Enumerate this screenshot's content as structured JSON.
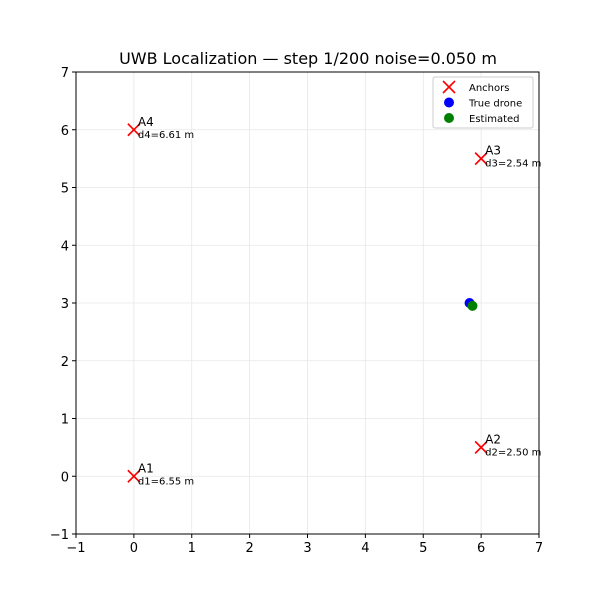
{
  "chart_data": {
    "type": "scatter",
    "title": "UWB Localization — step 1/200  noise=0.050 m",
    "xlabel": "",
    "ylabel": "",
    "xlim": [
      -1,
      7
    ],
    "ylim": [
      -1,
      7
    ],
    "xticks": [
      -1,
      0,
      1,
      2,
      3,
      4,
      5,
      6,
      7
    ],
    "yticks": [
      -1,
      0,
      1,
      2,
      3,
      4,
      5,
      6,
      7
    ],
    "xtick_labels": [
      "−1",
      "0",
      "1",
      "2",
      "3",
      "4",
      "5",
      "6",
      "7"
    ],
    "ytick_labels": [
      "−1",
      "0",
      "1",
      "2",
      "3",
      "4",
      "5",
      "6",
      "7"
    ],
    "grid": true,
    "legend_position": "top-right",
    "series": [
      {
        "name": "Anchors",
        "marker": "x",
        "color": "#ff0000",
        "points": [
          {
            "label": "A1",
            "x": 0,
            "y": 0,
            "annotation": "d1=6.55 m"
          },
          {
            "label": "A2",
            "x": 6,
            "y": 0.5,
            "annotation": "d2=2.50 m"
          },
          {
            "label": "A3",
            "x": 6,
            "y": 5.5,
            "annotation": "d3=2.54 m"
          },
          {
            "label": "A4",
            "x": 0,
            "y": 6,
            "annotation": "d4=6.61 m"
          }
        ]
      },
      {
        "name": "True drone",
        "marker": "circle",
        "color": "#0000ff",
        "points": [
          {
            "x": 5.8,
            "y": 3.0
          }
        ]
      },
      {
        "name": "Estimated",
        "marker": "circle",
        "color": "#008000",
        "points": [
          {
            "x": 5.85,
            "y": 2.95
          }
        ]
      }
    ]
  }
}
